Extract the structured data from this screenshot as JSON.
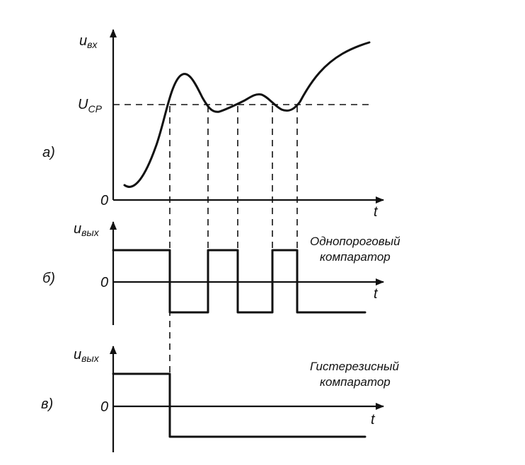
{
  "panel_a": {
    "letter": "а)",
    "ylabel": {
      "main": "u",
      "sub": "вх"
    },
    "threshold": {
      "main": "U",
      "sub": "СР"
    },
    "origin": "0",
    "xlabel": "t"
  },
  "panel_b": {
    "letter": "б)",
    "ylabel": {
      "main": "u",
      "sub": "вых"
    },
    "origin": "0",
    "xlabel": "t",
    "caption_line1": "Однопороговый",
    "caption_line2": "компаратор"
  },
  "panel_c": {
    "letter": "в)",
    "ylabel": {
      "main": "u",
      "sub": "вых"
    },
    "origin": "0",
    "xlabel": "t",
    "caption_line1": "Гистерезисный",
    "caption_line2": "компаратор"
  }
}
